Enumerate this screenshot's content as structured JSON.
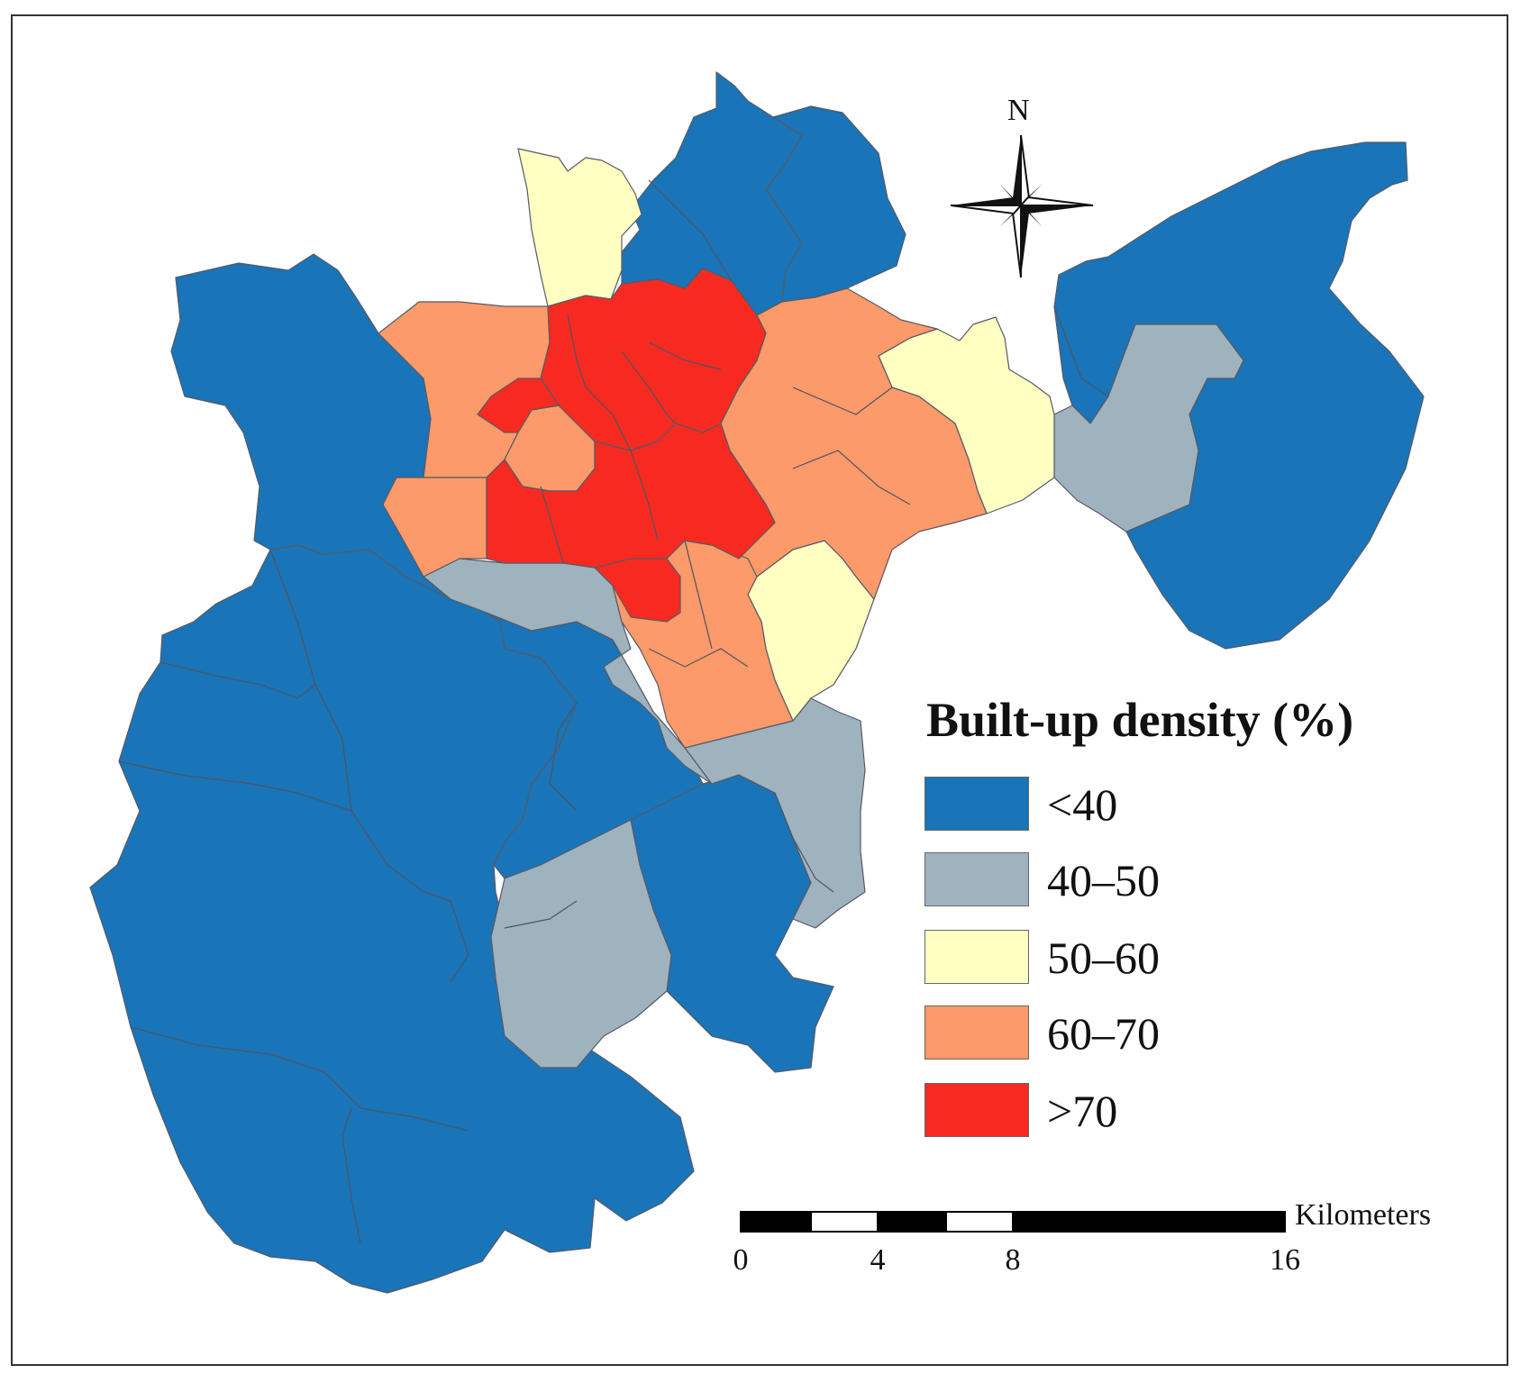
{
  "legend": {
    "title": "Built-up density (%)",
    "classes": [
      {
        "label": "<40",
        "color": "#1a74b8"
      },
      {
        "label": "40–50",
        "color": "#9fb3bf"
      },
      {
        "label": "50–60",
        "color": "#ffffc2"
      },
      {
        "label": "60–70",
        "color": "#fd9a6a"
      },
      {
        "label": ">70",
        "color": "#f72a21"
      }
    ]
  },
  "north_arrow": {
    "label": "N"
  },
  "scale_bar": {
    "unit": "Kilometers",
    "ticks": [
      "0",
      "4",
      "8",
      "16"
    ]
  }
}
